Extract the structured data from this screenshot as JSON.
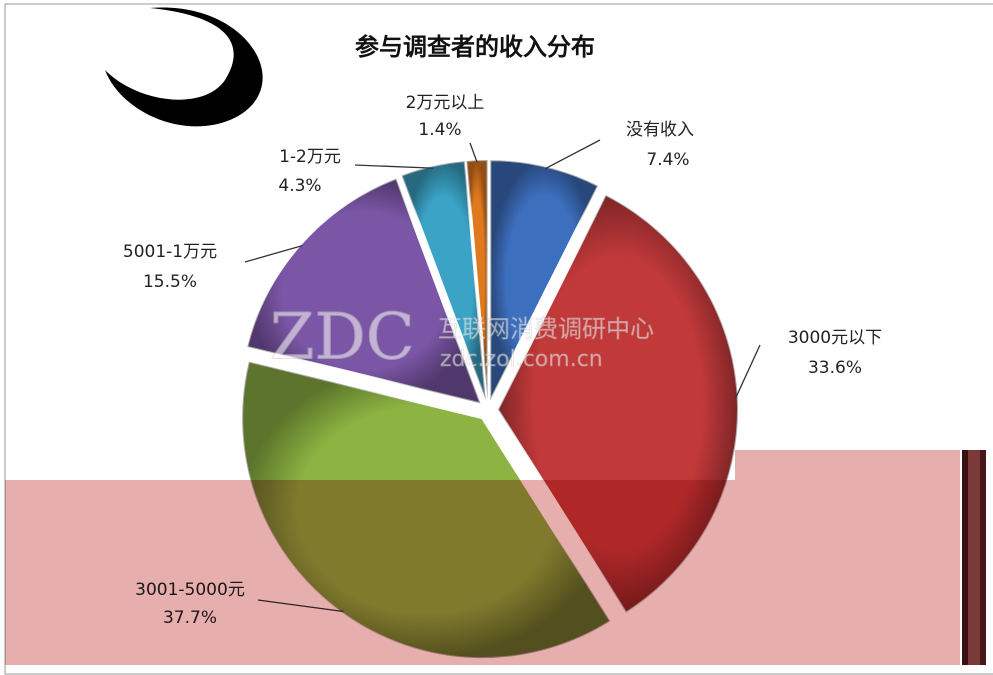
{
  "chart_data": {
    "type": "pie",
    "title": "参与调查者的收入分布",
    "categories": [
      "没有收入",
      "3000元以下",
      "3001-5000元",
      "5001-1万元",
      "1-2万元",
      "2万元以上"
    ],
    "values": [
      7.4,
      33.6,
      37.7,
      15.5,
      4.3,
      1.4
    ],
    "value_labels": [
      "7.4%",
      "33.6%",
      "37.7%",
      "15.5%",
      "4.3%",
      "1.4%"
    ],
    "colors": [
      "#3d6fbf",
      "#c2393a",
      "#8db342",
      "#7b56a6",
      "#3aa3c6",
      "#e0781e"
    ],
    "watermark": {
      "logo": "ZDC",
      "name": "互联网消费调研中心",
      "url": "zdc.zol.com.cn"
    }
  }
}
